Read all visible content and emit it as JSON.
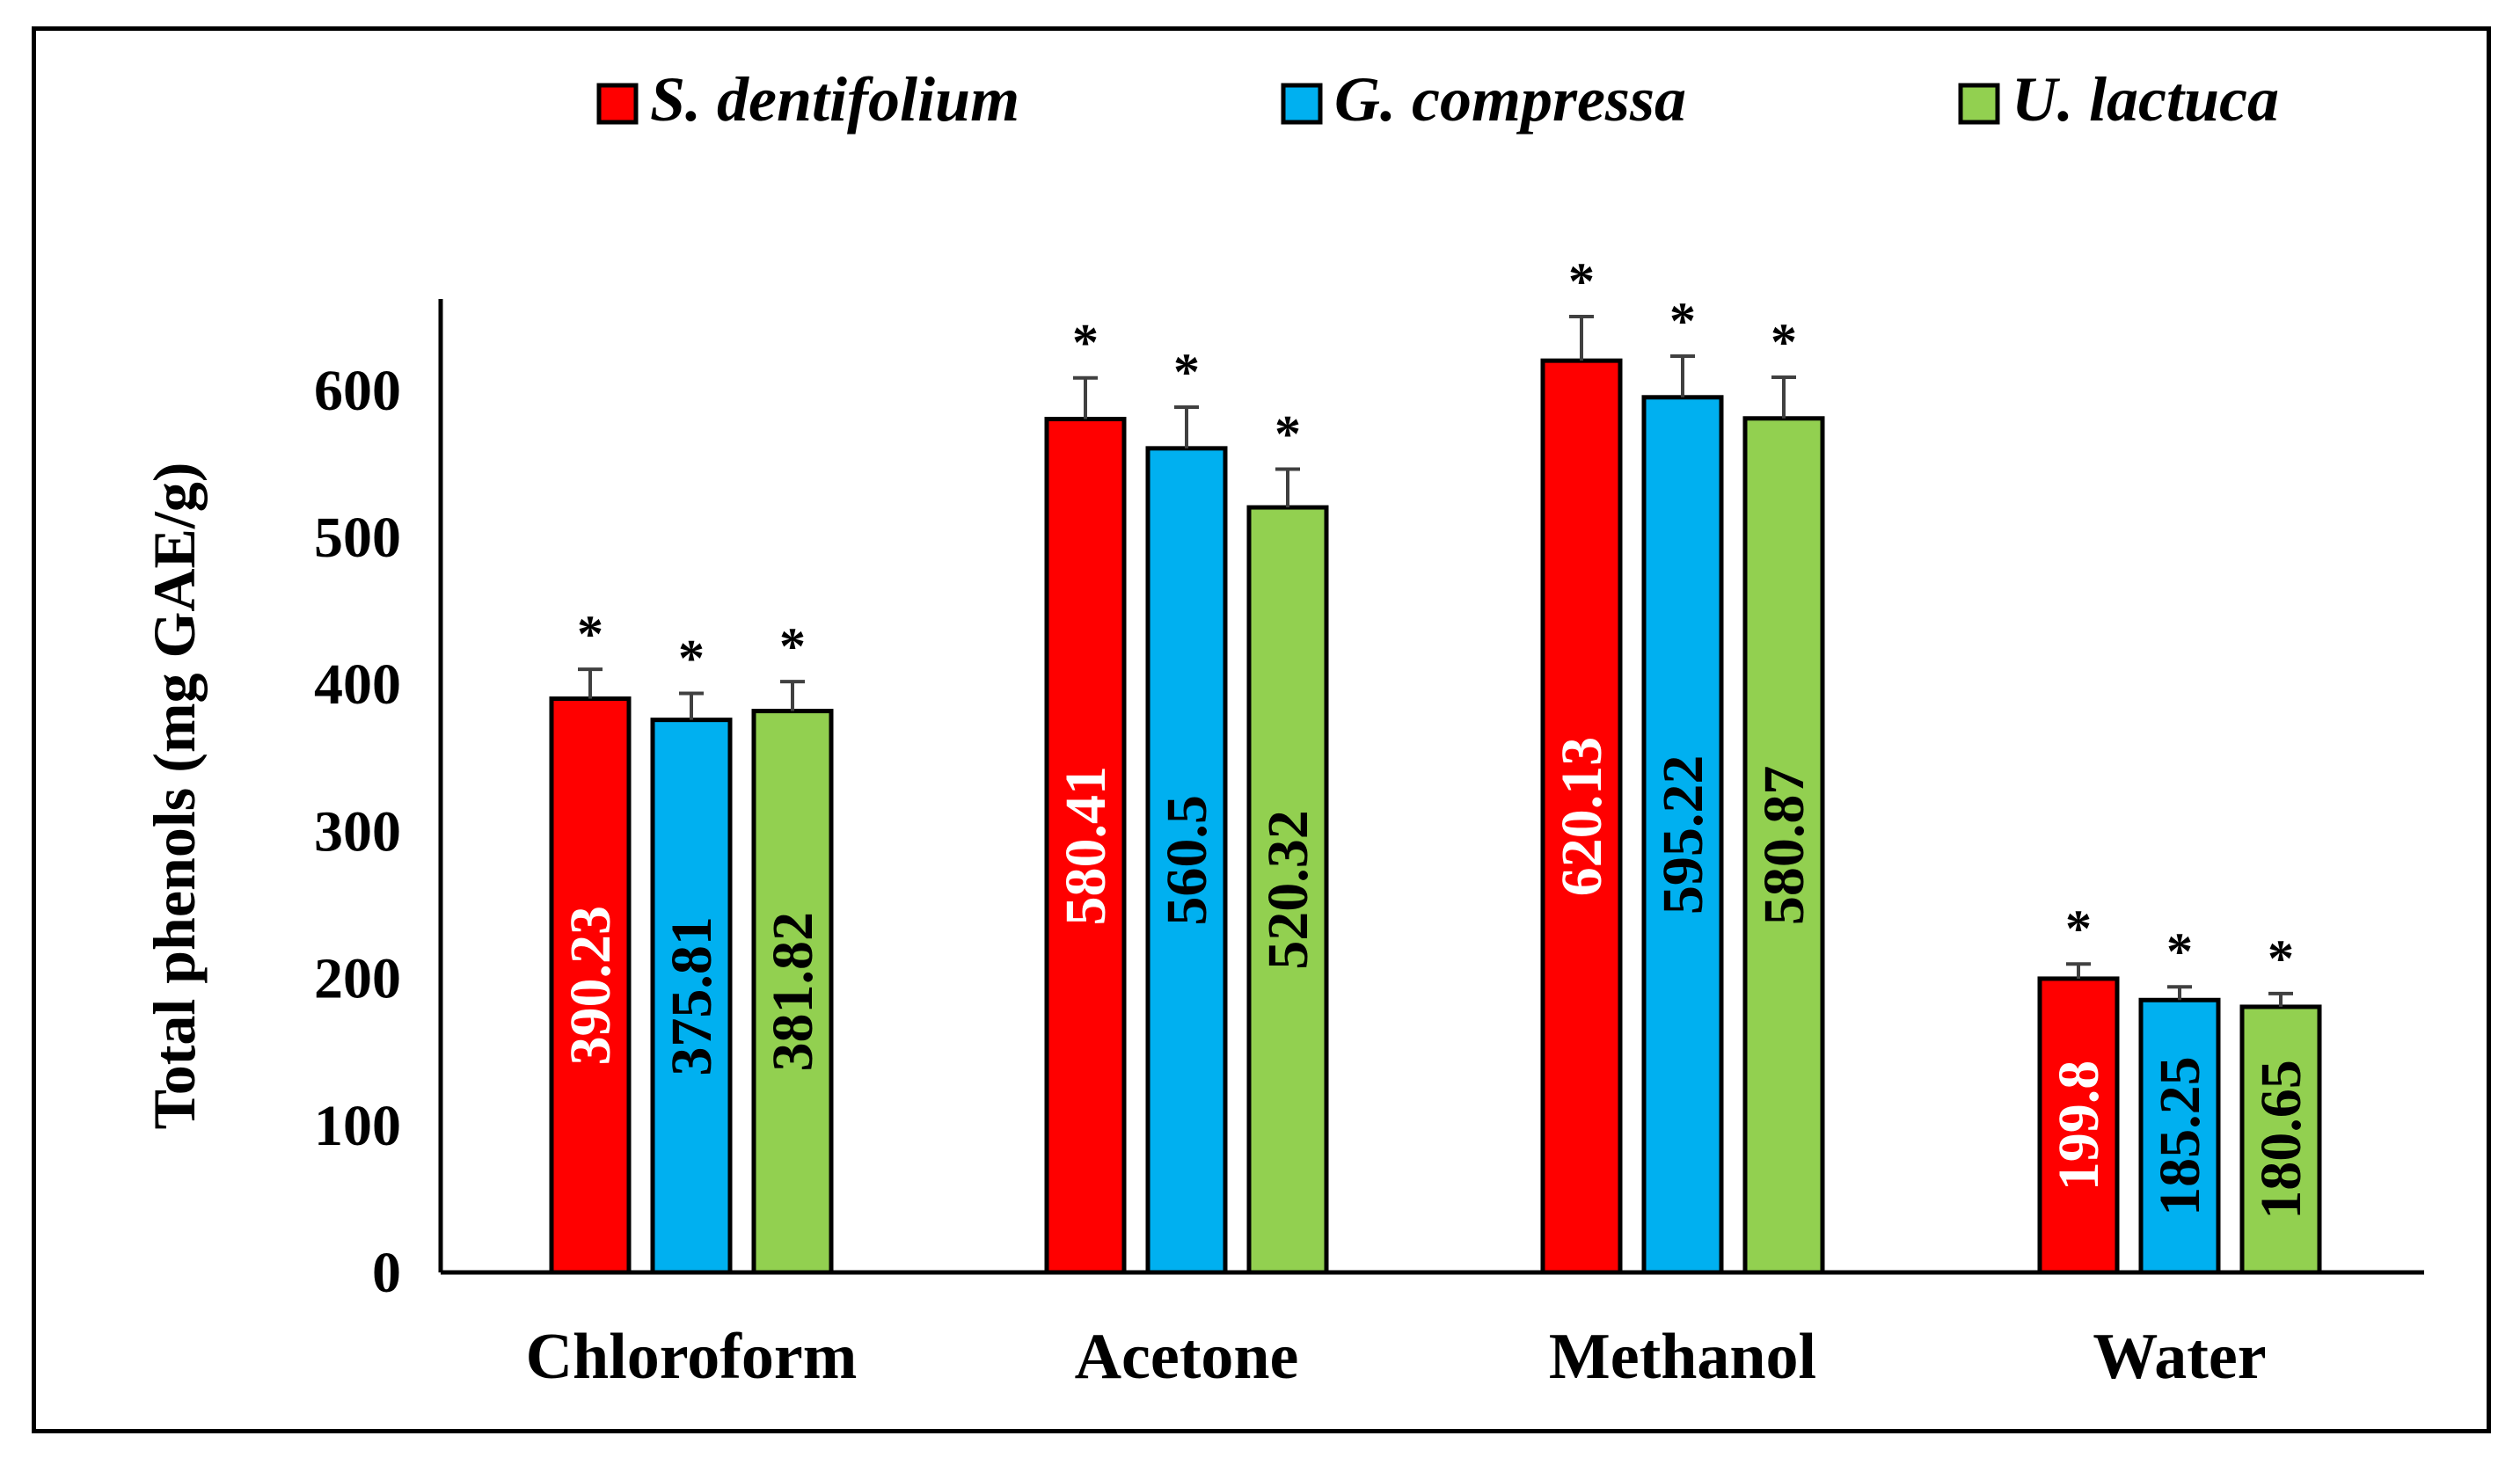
{
  "chart_data": {
    "type": "bar",
    "title": "",
    "xlabel": "",
    "ylabel": "Total phenols (mg GAE/g)",
    "ylim": [
      0,
      660
    ],
    "yticks": [
      "0",
      "100",
      "200",
      "300",
      "400",
      "500",
      "600"
    ],
    "categories": [
      "Chloroform",
      "Acetone",
      "Methanol",
      "Water"
    ],
    "series": [
      {
        "name": "S. dentifolium",
        "color": "#ff0000",
        "label_color": "#ffffff",
        "values": [
          390.23,
          580.41,
          620.13,
          199.8
        ],
        "labels": [
          "390.23",
          "580.41",
          "620.13",
          "199.8"
        ],
        "errors": [
          20,
          28,
          30,
          10
        ],
        "annotations": [
          "*",
          "*",
          "*",
          "*"
        ]
      },
      {
        "name": "G. compressa",
        "color": "#00b0f0",
        "label_color": "#000000",
        "values": [
          375.81,
          560.5,
          595.22,
          185.25
        ],
        "labels": [
          "375.81",
          "560.5",
          "595.22",
          "185.25"
        ],
        "errors": [
          18,
          28,
          28,
          9
        ],
        "annotations": [
          "*",
          "*",
          "*",
          "*"
        ]
      },
      {
        "name": "U. lactuca",
        "color": "#92d050",
        "label_color": "#000000",
        "values": [
          381.82,
          520.32,
          580.87,
          180.65
        ],
        "labels": [
          "381.82",
          "520.32",
          "580.87",
          "180.65"
        ],
        "errors": [
          20,
          26,
          28,
          9
        ],
        "annotations": [
          "*",
          "*",
          "*",
          "*"
        ]
      }
    ],
    "legend": "top"
  }
}
